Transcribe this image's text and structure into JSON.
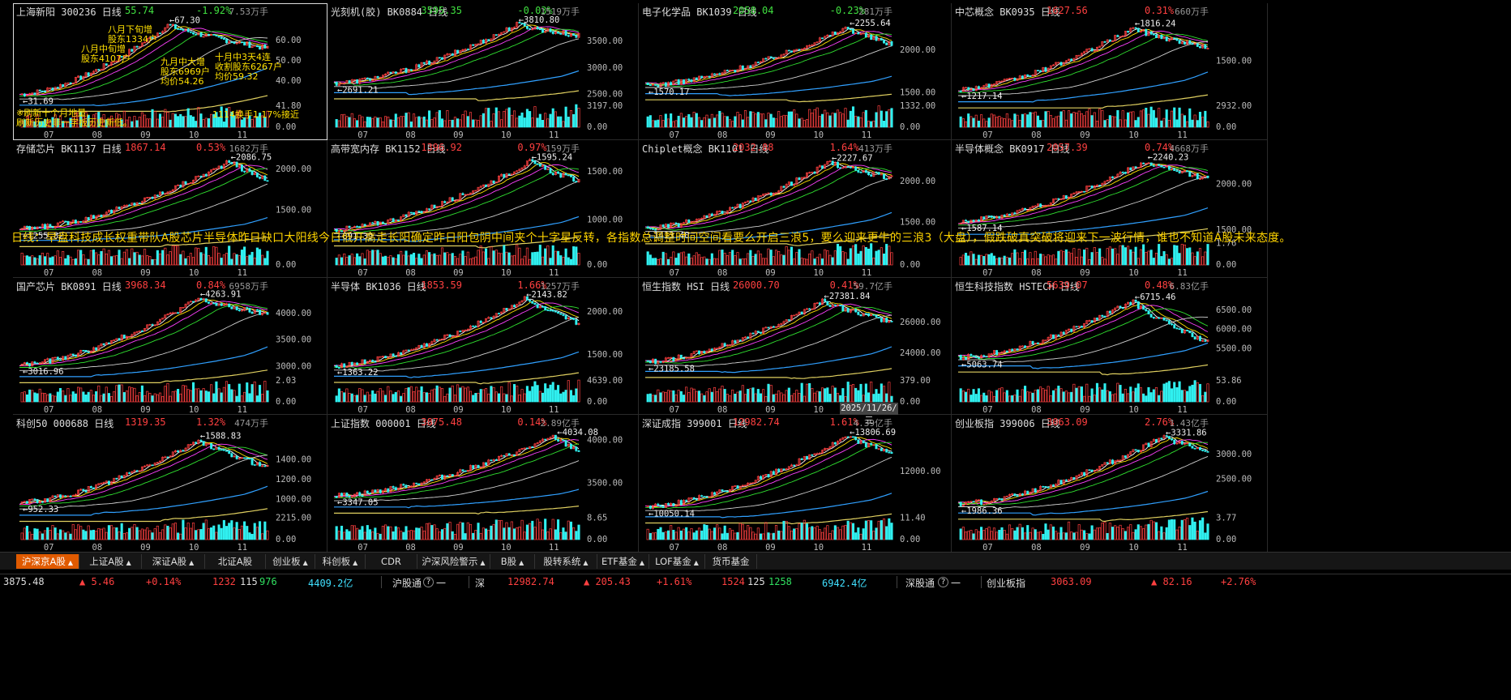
{
  "panels": [
    {
      "name": "上海新阳",
      "code": "300236",
      "period": "日线",
      "price": "55.74",
      "change": "-1.92%",
      "dir": "dn",
      "vol": "7.53万手",
      "yticks": [
        "60.00",
        "50.00",
        "40.00"
      ],
      "ymin": 32,
      "ymax": 70,
      "vticks": [
        "41.80",
        "0.00"
      ],
      "months": [
        "07",
        "08",
        "09",
        "10",
        "11"
      ],
      "hi": "67.30",
      "lo": "31.69",
      "start": 33,
      "end": 55.7,
      "peak": 67.3,
      "pk": 0.6
    },
    {
      "name": "光刻机(胶)",
      "code": "BK0884",
      "period": "日线",
      "price": "3595.35",
      "change": "-0.03%",
      "dir": "dn",
      "vol": "1519万手",
      "yticks": [
        "3500.00",
        "3000.00",
        "2500.00"
      ],
      "ymin": 2450,
      "ymax": 3900,
      "vticks": [
        "3197.00",
        "0.00"
      ],
      "months": [
        "07",
        "08",
        "09",
        "10",
        "11"
      ],
      "hi": "3810.80",
      "lo": "2691.21",
      "start": 2700,
      "end": 3595,
      "peak": 3810,
      "pk": 0.75
    },
    {
      "name": "电子化学品",
      "code": "BK1039",
      "period": "日线",
      "price": "2058.04",
      "change": "-0.23%",
      "dir": "dn",
      "vol": "281万手",
      "yticks": [
        "2000.00",
        "1500.00"
      ],
      "ymin": 1450,
      "ymax": 2350,
      "vticks": [
        "1332.00",
        "0.00"
      ],
      "months": [
        "07",
        "08",
        "09",
        "10",
        "11"
      ],
      "hi": "2255.64",
      "lo": "1570.17",
      "start": 1580,
      "end": 2058,
      "peak": 2255,
      "pk": 0.82
    },
    {
      "name": "中芯概念",
      "code": "BK0935",
      "period": "日线",
      "price": "1627.56",
      "change": "0.31%",
      "dir": "up",
      "vol": "660万手",
      "yticks": [
        "1500.00"
      ],
      "ymin": 1150,
      "ymax": 1900,
      "vticks": [
        "2932.00",
        "0.00"
      ],
      "months": [
        "07",
        "08",
        "09",
        "10",
        "11"
      ],
      "hi": "1816.24",
      "lo": "1217.14",
      "start": 1220,
      "end": 1627,
      "peak": 1816,
      "pk": 0.7
    },
    {
      "name": "存储芯片",
      "code": "BK1137",
      "period": "日线",
      "price": "1867.14",
      "change": "0.53%",
      "dir": "up",
      "vol": "1682万手",
      "yticks": [
        "2000.00",
        "1500.00"
      ],
      "ymin": 1200,
      "ymax": 2150,
      "vticks": [
        "0.00"
      ],
      "months": [
        "07",
        "08",
        "09",
        "10",
        "11"
      ],
      "hi": "2086.75",
      "lo": "1255.82",
      "start": 1260,
      "end": 1867,
      "peak": 2086,
      "pk": 0.85
    },
    {
      "name": "高带宽内存",
      "code": "BK1152",
      "period": "日线",
      "price": "1396.92",
      "change": "0.97%",
      "dir": "up",
      "vol": "159万手",
      "yticks": [
        "1500.00",
        "1000.00"
      ],
      "ymin": 850,
      "ymax": 1650,
      "vticks": [
        "0.00"
      ],
      "months": [
        "07",
        "08",
        "09",
        "10",
        "11"
      ],
      "hi": "1595.24",
      "lo": "891.39",
      "start": 895,
      "end": 1397,
      "peak": 1595,
      "pk": 0.8
    },
    {
      "name": "Chiplet概念",
      "code": "BK1101",
      "period": "日线",
      "price": "2032.88",
      "change": "1.64%",
      "dir": "up",
      "vol": "413万手",
      "yticks": [
        "2000.00",
        "1500.00"
      ],
      "ymin": 1350,
      "ymax": 2300,
      "vticks": [
        "0.00"
      ],
      "months": [
        "07",
        "08",
        "09",
        "10",
        "11"
      ],
      "hi": "2227.67",
      "lo": "1413.40",
      "start": 1415,
      "end": 2033,
      "peak": 2227,
      "pk": 0.75
    },
    {
      "name": "半导体概念",
      "code": "BK0917",
      "period": "日线",
      "price": "2057.39",
      "change": "0.74%",
      "dir": "up",
      "vol": "4668万手",
      "yticks": [
        "2000.00",
        "1500.00"
      ],
      "ymin": 1450,
      "ymax": 2300,
      "vticks": [
        "1.76",
        "0.00"
      ],
      "months": [
        "07",
        "08",
        "09",
        "10",
        "11"
      ],
      "hi": "2240.23",
      "lo": "1587.14",
      "start": 1590,
      "end": 2057,
      "peak": 2240,
      "pk": 0.75
    },
    {
      "name": "国产芯片",
      "code": "BK0891",
      "period": "日线",
      "price": "3968.34",
      "change": "0.84%",
      "dir": "up",
      "vol": "6958万手",
      "yticks": [
        "4000.00",
        "3500.00",
        "3000.00"
      ],
      "ymin": 2900,
      "ymax": 4350,
      "vticks": [
        "2.03",
        "0.00"
      ],
      "months": [
        "07",
        "08",
        "09",
        "10",
        "11"
      ],
      "hi": "4263.91",
      "lo": "3016.96",
      "start": 3020,
      "end": 3968,
      "peak": 4264,
      "pk": 0.72
    },
    {
      "name": "半导体",
      "code": "BK1036",
      "period": "日线",
      "price": "1853.59",
      "change": "1.66%",
      "dir": "up",
      "vol": "1257万手",
      "yticks": [
        "2000.00",
        "1500.00"
      ],
      "ymin": 1300,
      "ymax": 2200,
      "vticks": [
        "4639.00",
        "0.00"
      ],
      "months": [
        "07",
        "08",
        "09",
        "10",
        "11"
      ],
      "hi": "2143.82",
      "lo": "1363.22",
      "start": 1365,
      "end": 1854,
      "peak": 2144,
      "pk": 0.78
    },
    {
      "name": "恒生指数",
      "code": "HSI",
      "period": "日线",
      "price": "26000.70",
      "change": "0.41%",
      "dir": "up",
      "vol": "59.7亿手",
      "yticks": [
        "26000.00",
        "24000.00"
      ],
      "ymin": 22800,
      "ymax": 27800,
      "vticks": [
        "379.00",
        "0.00"
      ],
      "months": [
        "07",
        "08",
        "09",
        "10",
        "11"
      ],
      "hi": "27381.84",
      "lo": "23185.58",
      "start": 23400,
      "end": 26000,
      "peak": 27381,
      "pk": 0.72
    },
    {
      "name": "恒生科技指数",
      "code": "HSTECH",
      "period": "日线",
      "price": "5639.07",
      "change": "0.48%",
      "dir": "up",
      "vol": "6.83亿手",
      "yticks": [
        "6500.00",
        "6000.00",
        "5500.00"
      ],
      "ymin": 4900,
      "ymax": 6900,
      "vticks": [
        "53.86",
        "0.00"
      ],
      "months": [
        "07",
        "08",
        "09",
        "10",
        "11"
      ],
      "hi": "6715.46",
      "lo": "5063.74",
      "start": 5250,
      "end": 5639,
      "peak": 6715,
      "pk": 0.7
    },
    {
      "name": "科创50",
      "code": "000688",
      "period": "日线",
      "price": "1319.35",
      "change": "1.32%",
      "dir": "up",
      "vol": "474万手",
      "yticks": [
        "1400.00",
        "1200.00",
        "1000.00"
      ],
      "ymin": 900,
      "ymax": 1680,
      "vticks": [
        "2215.00",
        "0.00"
      ],
      "months": [
        "07",
        "08",
        "09",
        "10",
        "11"
      ],
      "hi": "1588.83",
      "lo": "952.33",
      "start": 960,
      "end": 1319,
      "peak": 1588,
      "pk": 0.72
    },
    {
      "name": "上证指数",
      "code": "000001",
      "period": "日线",
      "price": "3875.48",
      "change": "0.14%",
      "dir": "up",
      "vol": "2.89亿手",
      "yticks": [
        "4000.00",
        "3500.00"
      ],
      "ymin": 3200,
      "ymax": 4100,
      "vticks": [
        "8.65",
        "0.00"
      ],
      "months": [
        "07",
        "08",
        "09",
        "10",
        "11"
      ],
      "hi": "4034.08",
      "lo": "3347.05",
      "start": 3350,
      "end": 3875,
      "peak": 4034,
      "pk": 0.9
    },
    {
      "name": "深证成指",
      "code": "399001",
      "period": "日线",
      "price": "12982.74",
      "change": "1.61%",
      "dir": "up",
      "vol": "4.39亿手",
      "yticks": [
        "12000.00"
      ],
      "ymin": 10000,
      "ymax": 14100,
      "vticks": [
        "11.40",
        "0.00"
      ],
      "months": [
        "07",
        "08",
        "09",
        "10",
        "11"
      ],
      "hi": "13806.69",
      "lo": "10050.14",
      "start": 10100,
      "end": 12983,
      "peak": 13806,
      "pk": 0.82
    },
    {
      "name": "创业板指",
      "code": "399006",
      "period": "日线",
      "price": "3063.09",
      "change": "2.76%",
      "dir": "up",
      "vol": "1.43亿手",
      "yticks": [
        "3000.00",
        "2500.00"
      ],
      "ymin": 1900,
      "ymax": 3450,
      "vticks": [
        "3.77",
        "0.00"
      ],
      "months": [
        "07",
        "08",
        "09",
        "10",
        "11"
      ],
      "hi": "3331.86",
      "lo": "1986.36",
      "start": 1990,
      "end": 3063,
      "peak": 3332,
      "pk": 0.82
    }
  ],
  "scroll_text": "日线：早盘科技成长权重带队A股芯片半导体昨日缺口大阳线今日低开高走长阳确定昨日阳包阴中间夹个十字星反转，各指数总调整时间空间看要么开启三浪5，要么迎来更牛的三浪3（大盘），假跌破真突破将迎来下一波行情，谁也不知道A股未来态度。",
  "notes": [
    "八月下旬增",
    "股东1334户",
    "八月中旬增",
    "股东4107户",
    "九月中大增",
    "股东6969户",
    "均价54.26",
    "十月中3天4连",
    "收割股东6267户",
    "均价59.32",
    "※刷新十个月地量,",
    "刷新历史非一字板历史新低。",
    "1114换手1.17%接近"
  ],
  "date_tip": "2025/11/26/三",
  "tabs": [
    {
      "label": "沪深京A股",
      "arrow": true,
      "active": true
    },
    {
      "label": "上证A股",
      "arrow": true
    },
    {
      "label": "深证A股",
      "arrow": true
    },
    {
      "label": "北证A股",
      "arrow": false
    },
    {
      "label": "创业板",
      "arrow": true
    },
    {
      "label": "科创板",
      "arrow": true
    },
    {
      "label": "CDR",
      "arrow": false
    },
    {
      "label": "沪深风险警示",
      "arrow": true
    },
    {
      "label": "B股",
      "arrow": true
    },
    {
      "label": "股转系统",
      "arrow": true
    },
    {
      "label": "ETF基金",
      "arrow": true
    },
    {
      "label": "LOF基金",
      "arrow": true
    },
    {
      "label": "货币基金",
      "arrow": false
    }
  ],
  "status": {
    "sh_price": "3875.48",
    "sh_delta": "▲ 5.46",
    "sh_pct": "+0.14%",
    "sh_up": "1232",
    "sh_flat": "115",
    "sh_down": "976",
    "sh_amt": "4409.2亿",
    "hgt_label": "沪股通",
    "hgt_icon": "?",
    "hgt_val": "一",
    "sz_label": "深",
    "sz_price": "12982.74",
    "sz_delta": "▲ 205.43",
    "sz_pct": "+1.61%",
    "sz_up": "1524",
    "sz_flat": "125",
    "sz_down": "1258",
    "sz_amt": "6942.4亿",
    "sgt_label": "深股通",
    "sgt_icon": "?",
    "sgt_val": "一",
    "cy_label": "创业板指",
    "cy_price": "3063.09",
    "cy_delta": "▲ 82.16",
    "cy_pct": "+2.76%"
  },
  "colors": {
    "up": "#ff4040",
    "down": "#30f0f0",
    "ma5": "#ffffff",
    "ma10": "#ffe000",
    "ma20": "#ff40ff",
    "ma30": "#30e030",
    "ma60": "#d0d0d0",
    "ma120": "#30a0ff",
    "ma250": "#e0d060"
  }
}
